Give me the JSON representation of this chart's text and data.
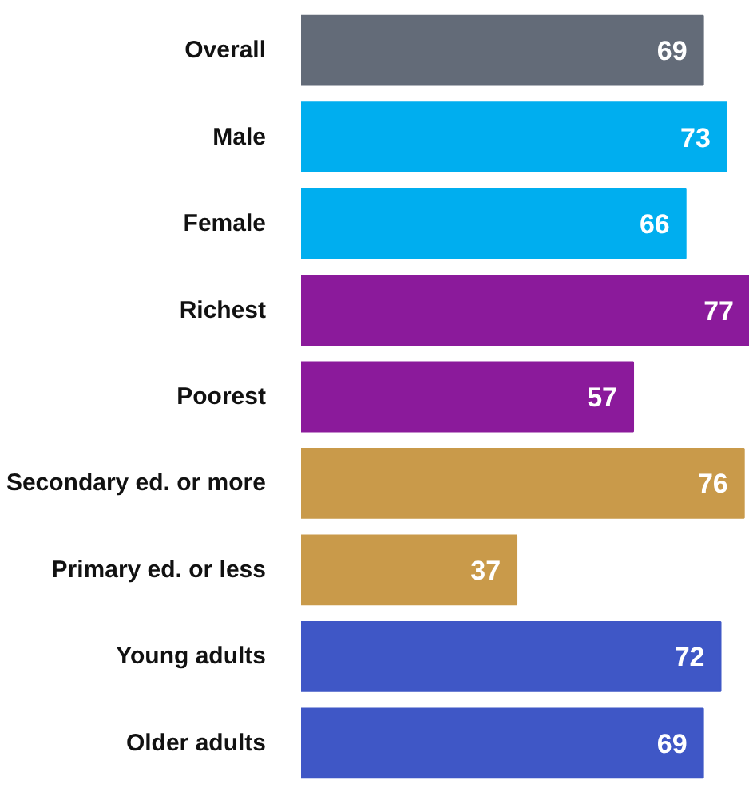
{
  "chart_data": {
    "type": "bar",
    "orientation": "horizontal",
    "categories": [
      "Overall",
      "Male",
      "Female",
      "Richest",
      "Poorest",
      "Secondary ed. or more",
      "Primary ed. or less",
      "Young adults",
      "Older adults"
    ],
    "values": [
      69,
      73,
      66,
      77,
      57,
      76,
      37,
      72,
      69
    ],
    "colors": [
      "#636b78",
      "#00aeef",
      "#00aeef",
      "#8b1a9b",
      "#8b1a9b",
      "#c99a4a",
      "#c99a4a",
      "#3f57c6",
      "#3f57c6"
    ],
    "xlim": [
      0,
      77
    ],
    "tick_labels": "y",
    "data_labels": true
  }
}
